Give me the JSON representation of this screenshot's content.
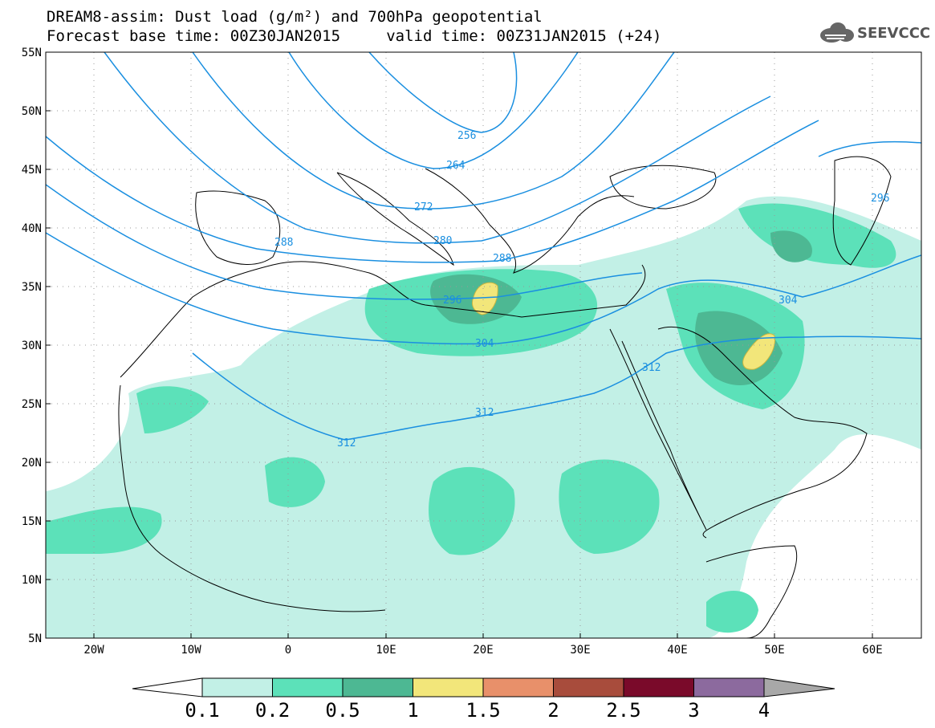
{
  "title": {
    "line1": "DREAM8-assim: Dust load (g/m²) and 700hPa geopotential",
    "line2": "Forecast base time: 00Z30JAN2015     valid time: 00Z31JAN2015 (+24)"
  },
  "logo": {
    "text": "SEEVCCC",
    "icon": "cloud-icon"
  },
  "map": {
    "lat_labels": [
      "55N",
      "50N",
      "45N",
      "40N",
      "35N",
      "30N",
      "25N",
      "20N",
      "15N",
      "10N",
      "5N"
    ],
    "lon_labels": [
      "20W",
      "10W",
      "0",
      "10E",
      "20E",
      "30E",
      "40E",
      "50E",
      "60E"
    ],
    "contour_labels": [
      {
        "text": "256"
      },
      {
        "text": "264"
      },
      {
        "text": "272"
      },
      {
        "text": "280"
      },
      {
        "text": "288"
      },
      {
        "text": "288"
      },
      {
        "text": "296"
      },
      {
        "text": "296"
      },
      {
        "text": "304"
      },
      {
        "text": "304"
      },
      {
        "text": "312"
      },
      {
        "text": "312"
      },
      {
        "text": "312"
      }
    ],
    "colors": {
      "contour": "#1a8fe0",
      "coast": "#000000",
      "graticule": "#999999"
    }
  },
  "colorbar": {
    "labels": [
      "0.1",
      "0.2",
      "0.5",
      "1",
      "1.5",
      "2",
      "2.5",
      "3",
      "4"
    ],
    "colors": [
      "#c2f0e6",
      "#5ce1b9",
      "#4db893",
      "#f2e67a",
      "#e8906a",
      "#a84c3c",
      "#7a0a2a",
      "#8c6a9e",
      "#a8a8a8"
    ]
  }
}
